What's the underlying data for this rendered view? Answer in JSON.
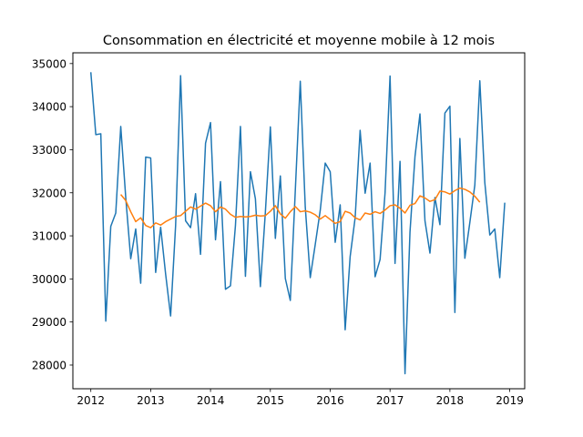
{
  "chart_data": {
    "type": "line",
    "title": "Consommation en électricité et moyenne mobile à 12 mois",
    "xlabel": "",
    "ylabel": "",
    "xlim": [
      2011.7,
      2019.25
    ],
    "ylim": [
      27450,
      35250
    ],
    "x_ticks": [
      2012,
      2013,
      2014,
      2015,
      2016,
      2017,
      2018,
      2019
    ],
    "y_ticks": [
      28000,
      29000,
      30000,
      31000,
      32000,
      33000,
      34000,
      35000
    ],
    "grid": false,
    "legend": "none",
    "series": [
      {
        "color": "#1f77b4",
        "x": [
          2012.0,
          2012.0833,
          2012.1667,
          2012.25,
          2012.3333,
          2012.4167,
          2012.5,
          2012.5833,
          2012.6667,
          2012.75,
          2012.8333,
          2012.9167,
          2013.0,
          2013.0833,
          2013.1667,
          2013.25,
          2013.3333,
          2013.4167,
          2013.5,
          2013.5833,
          2013.6667,
          2013.75,
          2013.8333,
          2013.9167,
          2014.0,
          2014.0833,
          2014.1667,
          2014.25,
          2014.3333,
          2014.4167,
          2014.5,
          2014.5833,
          2014.6667,
          2014.75,
          2014.8333,
          2014.9167,
          2015.0,
          2015.0833,
          2015.1667,
          2015.25,
          2015.3333,
          2015.4167,
          2015.5,
          2015.5833,
          2015.6667,
          2015.75,
          2015.8333,
          2015.9167,
          2016.0,
          2016.0833,
          2016.1667,
          2016.25,
          2016.3333,
          2016.4167,
          2016.5,
          2016.5833,
          2016.6667,
          2016.75,
          2016.8333,
          2016.9167,
          2017.0,
          2017.0833,
          2017.1667,
          2017.25,
          2017.3333,
          2017.4167,
          2017.5,
          2017.5833,
          2017.6667,
          2017.75,
          2017.8333,
          2017.9167,
          2018.0,
          2018.0833,
          2018.1667,
          2018.25,
          2018.3333,
          2018.4167,
          2018.5,
          2018.5833,
          2018.6667,
          2018.75,
          2018.8333,
          2018.9167
        ],
        "y": [
          34800,
          33350,
          33370,
          29020,
          31220,
          31530,
          33540,
          31890,
          30470,
          31160,
          29900,
          32830,
          32810,
          30150,
          31200,
          30110,
          29140,
          31240,
          34720,
          31350,
          31190,
          31980,
          30570,
          33150,
          33630,
          30910,
          32260,
          29760,
          29840,
          31240,
          33540,
          30060,
          32490,
          31860,
          29820,
          31550,
          33530,
          30940,
          32390,
          30010,
          29500,
          32050,
          34590,
          31670,
          30030,
          30800,
          31590,
          32690,
          32490,
          30850,
          31720,
          28820,
          30520,
          31420,
          33450,
          31990,
          32690,
          30050,
          30450,
          32000,
          34710,
          30360,
          32730,
          27800,
          31090,
          32840,
          33830,
          31350,
          30600,
          31890,
          31260,
          33850,
          34010,
          29220,
          33260,
          30480,
          31310,
          32180,
          34600,
          32240,
          31020,
          31160,
          30030,
          31770
        ]
      },
      {
        "color": "#ff7f0e",
        "x": [
          2012.5,
          2012.5833,
          2012.6667,
          2012.75,
          2012.8333,
          2012.9167,
          2013.0,
          2013.0833,
          2013.1667,
          2013.25,
          2013.3333,
          2013.4167,
          2013.5,
          2013.5833,
          2013.6667,
          2013.75,
          2013.8333,
          2013.9167,
          2014.0,
          2014.0833,
          2014.1667,
          2014.25,
          2014.3333,
          2014.4167,
          2014.5,
          2014.5833,
          2014.6667,
          2014.75,
          2014.8333,
          2014.9167,
          2015.0,
          2015.0833,
          2015.1667,
          2015.25,
          2015.3333,
          2015.4167,
          2015.5,
          2015.5833,
          2015.6667,
          2015.75,
          2015.8333,
          2015.9167,
          2016.0,
          2016.0833,
          2016.1667,
          2016.25,
          2016.3333,
          2016.4167,
          2016.5,
          2016.5833,
          2016.6667,
          2016.75,
          2016.8333,
          2016.9167,
          2017.0,
          2017.0833,
          2017.1667,
          2017.25,
          2017.3333,
          2017.4167,
          2017.5,
          2017.5833,
          2017.6667,
          2017.75,
          2017.8333,
          2017.9167,
          2018.0,
          2018.0833,
          2018.1667,
          2018.25,
          2018.3333,
          2018.4167,
          2018.5
        ],
        "y": [
          31960,
          31820,
          31560,
          31330,
          31420,
          31240,
          31190,
          31300,
          31250,
          31330,
          31390,
          31450,
          31470,
          31570,
          31670,
          31620,
          31690,
          31760,
          31700,
          31560,
          31670,
          31620,
          31500,
          31430,
          31450,
          31440,
          31450,
          31480,
          31460,
          31470,
          31570,
          31700,
          31510,
          31410,
          31560,
          31680,
          31560,
          31580,
          31550,
          31490,
          31390,
          31470,
          31380,
          31290,
          31330,
          31570,
          31530,
          31420,
          31370,
          31530,
          31500,
          31560,
          31520,
          31600,
          31700,
          31720,
          31640,
          31530,
          31710,
          31750,
          31930,
          31880,
          31800,
          31840,
          32040,
          32020,
          31970,
          32050,
          32110,
          32080,
          32020,
          31920,
          31780
        ]
      }
    ]
  }
}
